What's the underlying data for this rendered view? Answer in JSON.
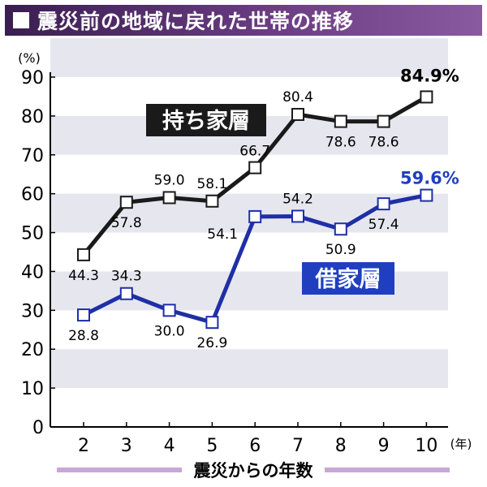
{
  "title": "震災前の地域に戻れた世帯の推移",
  "chart_data": {
    "type": "line",
    "title": "震災前の地域に戻れた世帯の推移",
    "y_unit": "(%)",
    "x_unit": "(年)",
    "xlabel": "震災からの年数",
    "ylabel": "",
    "x": [
      2,
      3,
      4,
      5,
      6,
      7,
      8,
      9,
      10
    ],
    "ylim": [
      0,
      90
    ],
    "yticks": [
      0,
      10,
      20,
      30,
      40,
      50,
      60,
      70,
      80,
      90
    ],
    "grid": "horizontal bands",
    "series": [
      {
        "name": "持ち家層",
        "values": [
          44.3,
          57.8,
          59.0,
          58.1,
          66.7,
          80.4,
          78.6,
          78.6,
          84.9
        ],
        "labels": [
          "44.3",
          "57.8",
          "59.0",
          "58.1",
          "66.7",
          "80.4",
          "78.6",
          "78.6",
          "84.9%"
        ],
        "color": "#1a1a1a"
      },
      {
        "name": "借家層",
        "values": [
          28.8,
          34.3,
          30.0,
          26.9,
          54.1,
          54.2,
          50.9,
          57.4,
          59.6
        ],
        "labels": [
          "28.8",
          "34.3",
          "30.0",
          "26.9",
          "54.1",
          "54.2",
          "50.9",
          "57.4",
          "59.6%"
        ],
        "color": "#1f2fa6"
      }
    ]
  },
  "colors": {
    "title_bar": "#5a2f72",
    "band": "#e6e6ef",
    "owner_line": "#1a1a1a",
    "renter_line": "#1f2fa6",
    "owner_label_bg": "#1a1a1a",
    "renter_label_bg": "#1f3fc0",
    "final_renter_text": "#1f3fc0",
    "xlabel_bar": "#c9a6d6"
  }
}
